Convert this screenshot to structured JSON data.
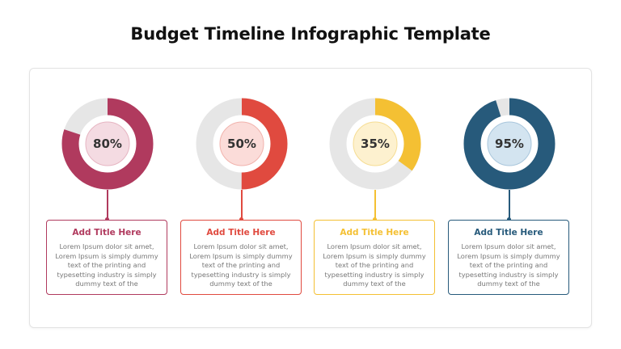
{
  "title": "Budget Timeline Infographic Template",
  "items": [
    {
      "percent_label": "80%",
      "percent": 80,
      "color": "#b03a5e",
      "inner_fill": "#f4dbe2",
      "inner_stroke": "#e6b5c2",
      "card_title": "Add Title Here",
      "card_body": "Lorem Ipsum dolor sit amet, Lorem Ipsum is simply dummy text of the printing and typesetting industry is simply dummy text of the"
    },
    {
      "percent_label": "50%",
      "percent": 50,
      "color": "#e04a3f",
      "inner_fill": "#fbdcd9",
      "inner_stroke": "#f1b3ad",
      "card_title": "Add Title Here",
      "card_body": "Lorem Ipsum dolor sit amet, Lorem Ipsum is simply dummy text of the printing and typesetting industry is simply dummy text of the"
    },
    {
      "percent_label": "35%",
      "percent": 35,
      "color": "#f4c033",
      "inner_fill": "#fdf1cf",
      "inner_stroke": "#f6dd93",
      "card_title": "Add Title Here",
      "card_body": "Lorem Ipsum dolor sit amet, Lorem Ipsum is simply dummy text of the printing and typesetting industry is simply dummy text of the"
    },
    {
      "percent_label": "95%",
      "percent": 95,
      "color": "#275a7b",
      "inner_fill": "#d3e4f0",
      "inner_stroke": "#a9c6dc",
      "card_title": "Add Title Here",
      "card_body": "Lorem Ipsum dolor sit amet, Lorem Ipsum is simply dummy text of the printing and typesetting industry is simply dummy text of the"
    }
  ],
  "track_color": "#e6e6e6"
}
